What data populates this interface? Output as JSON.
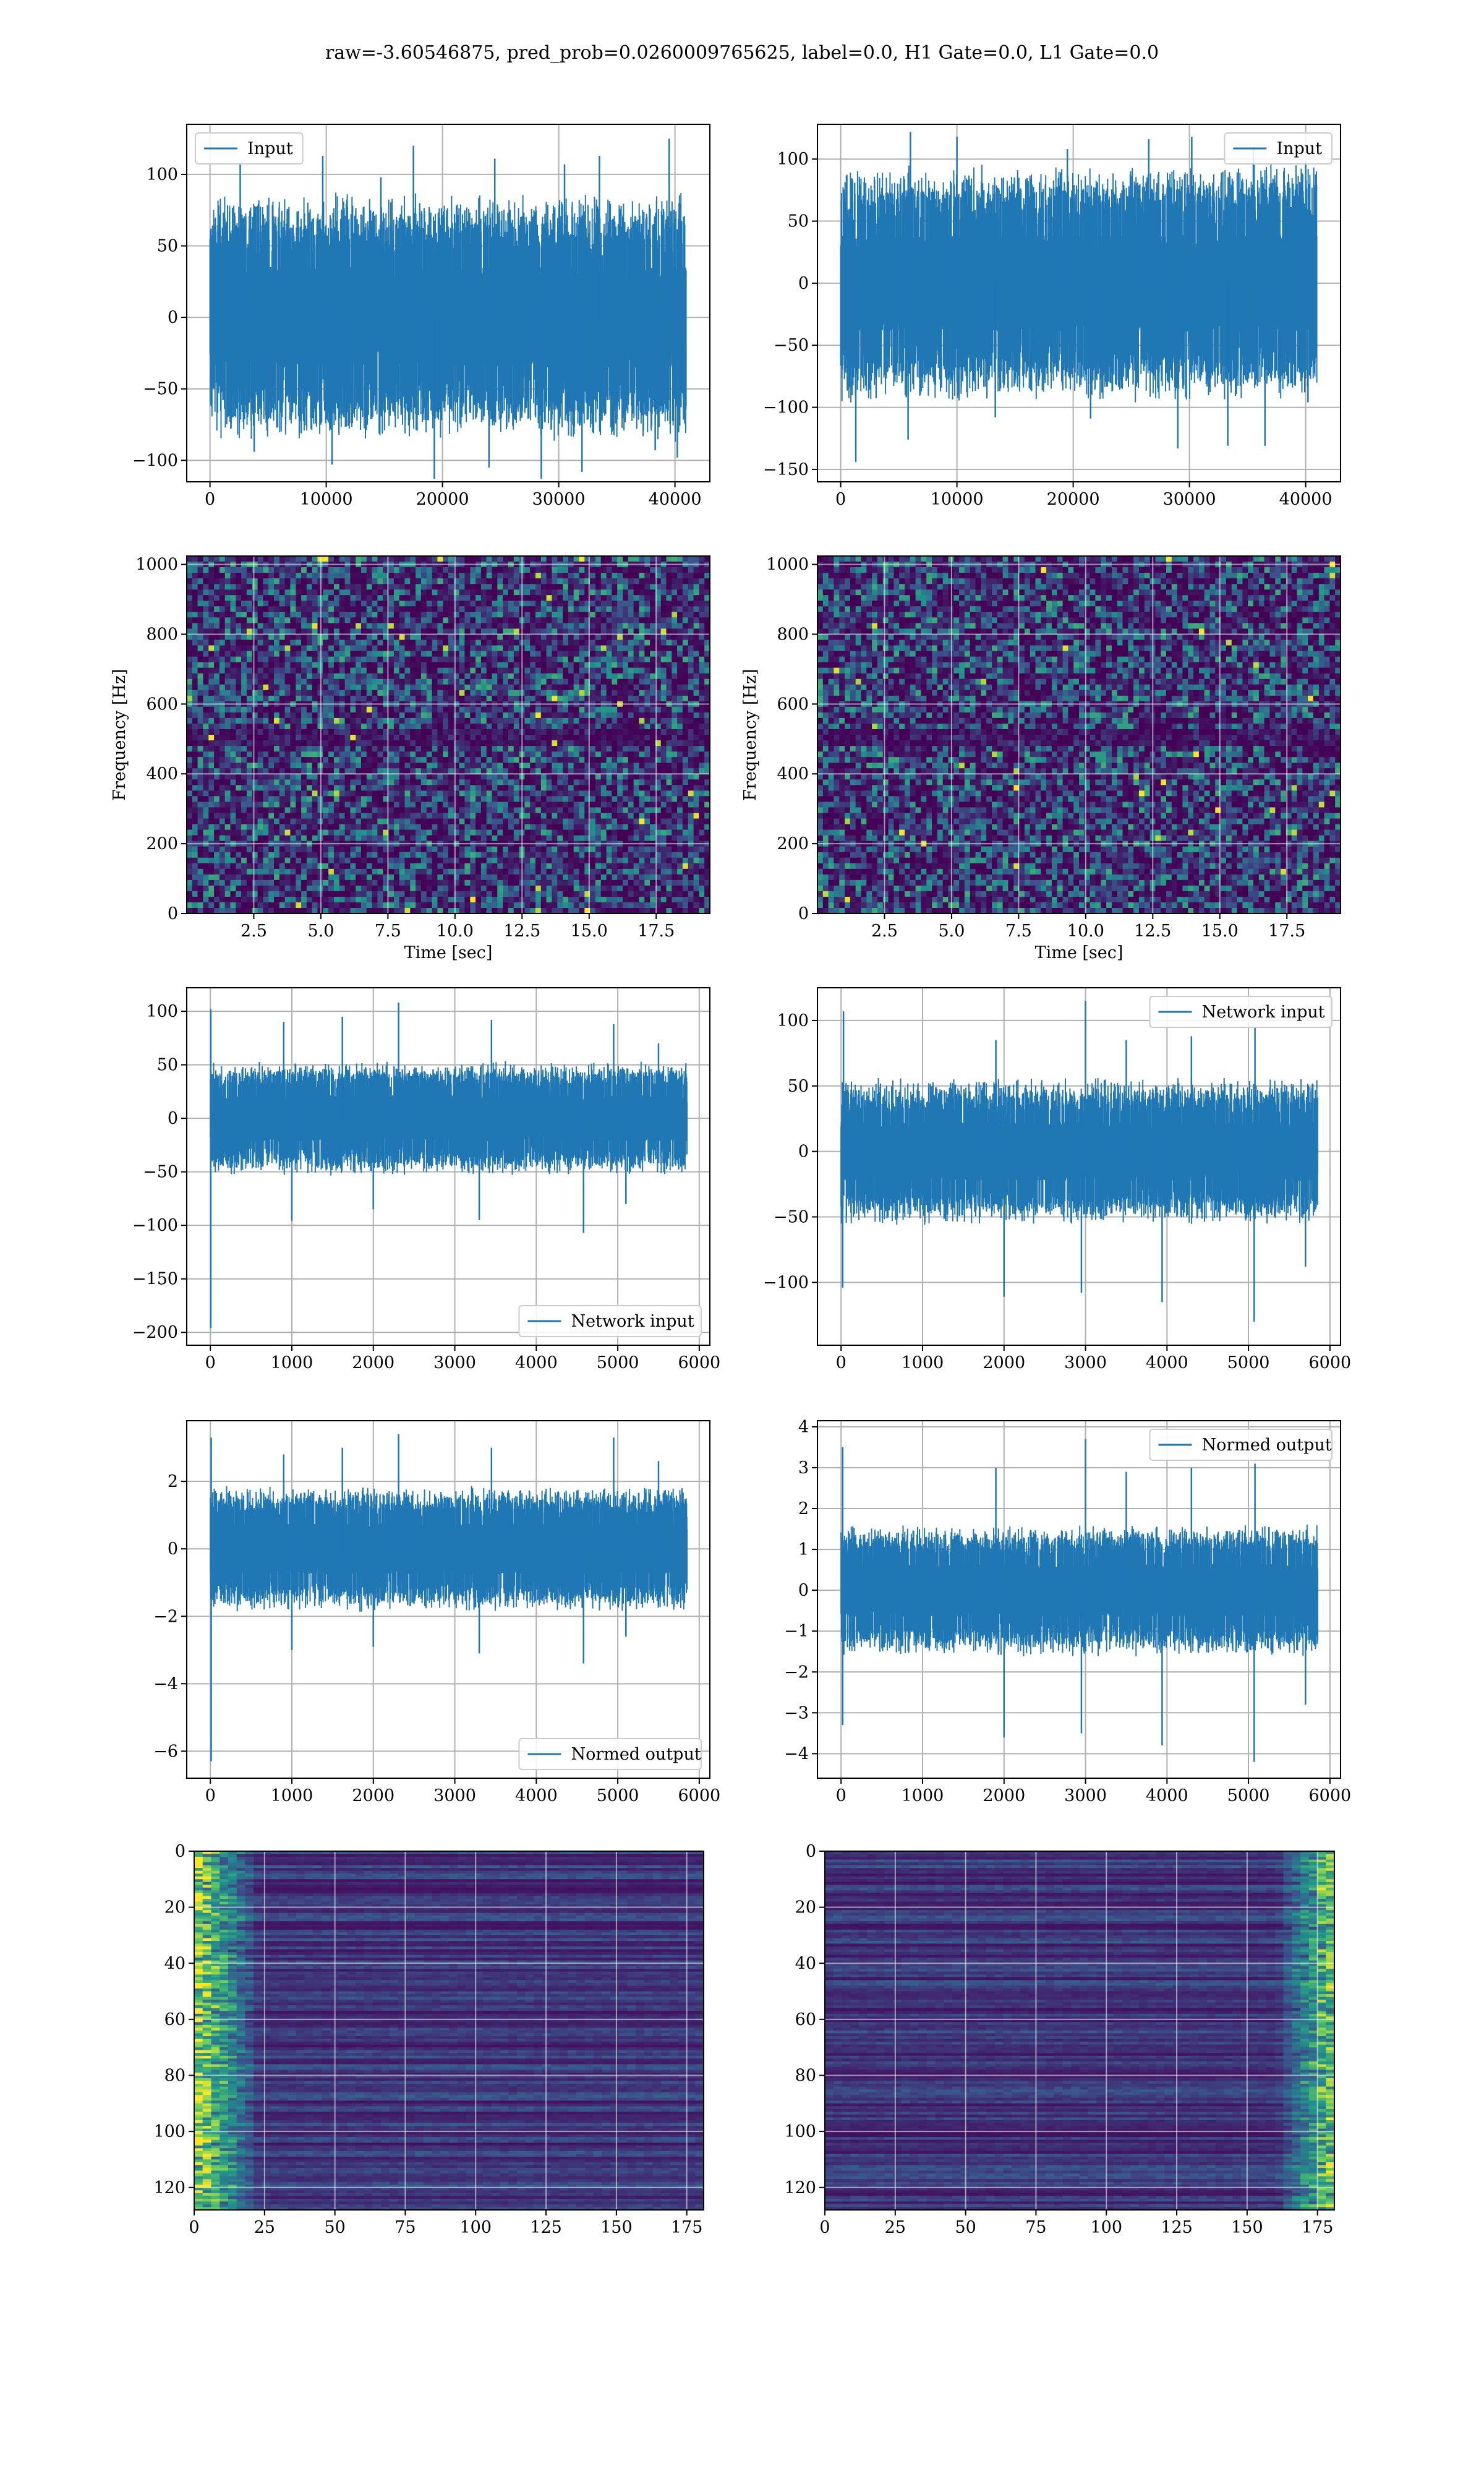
{
  "figure": {
    "title": "raw=-3.60546875, pred_prob=0.0260009765625, label=0.0, H1 Gate=0.0, L1 Gate=0.0"
  },
  "colors": {
    "line": "#1f77b4",
    "viridis": [
      "#440154",
      "#3b528b",
      "#21918c",
      "#5ec962",
      "#fde725"
    ]
  },
  "chart_data": [
    {
      "id": "r1c1",
      "type": "line",
      "panel": "row1-left",
      "title": "",
      "xlabel": "",
      "ylabel": "",
      "xlim": [
        -2000,
        43000
      ],
      "ylim": [
        -115,
        135
      ],
      "xticks": [
        0,
        10000,
        20000,
        30000,
        40000
      ],
      "yticks": [
        -100,
        -50,
        0,
        50,
        100
      ],
      "grid": true,
      "legend": "upper left",
      "series": [
        {
          "name": "Input",
          "x_range": [
            0,
            40960
          ],
          "core_amplitude": 65,
          "spikes": [
            [
              2600,
              108
            ],
            [
              9700,
              113
            ],
            [
              14700,
              98
            ],
            [
              17500,
              120
            ],
            [
              24500,
              111
            ],
            [
              30500,
              107
            ],
            [
              33500,
              113
            ],
            [
              39500,
              125
            ],
            [
              3800,
              -94
            ],
            [
              10500,
              -103
            ],
            [
              19300,
              -113
            ],
            [
              24000,
              -105
            ],
            [
              28500,
              -113
            ],
            [
              32000,
              -108
            ],
            [
              38300,
              -93
            ],
            [
              40200,
              -98
            ]
          ]
        }
      ]
    },
    {
      "id": "r1c2",
      "type": "line",
      "panel": "row1-right",
      "title": "",
      "xlabel": "",
      "ylabel": "",
      "xlim": [
        -2000,
        43000
      ],
      "ylim": [
        -160,
        128
      ],
      "xticks": [
        0,
        10000,
        20000,
        30000,
        40000
      ],
      "yticks": [
        -150,
        -100,
        -50,
        0,
        50,
        100
      ],
      "grid": true,
      "legend": "upper right",
      "series": [
        {
          "name": "Input",
          "x_range": [
            0,
            40960
          ],
          "core_amplitude": 72,
          "spikes": [
            [
              6000,
              122
            ],
            [
              10000,
              118
            ],
            [
              19500,
              108
            ],
            [
              26500,
              116
            ],
            [
              30200,
              118
            ],
            [
              35500,
              110
            ],
            [
              40000,
              98
            ],
            [
              1300,
              -144
            ],
            [
              5800,
              -126
            ],
            [
              13300,
              -108
            ],
            [
              21500,
              -109
            ],
            [
              29000,
              -133
            ],
            [
              33300,
              -131
            ],
            [
              36500,
              -131
            ],
            [
              40200,
              -96
            ]
          ]
        }
      ]
    },
    {
      "id": "r2c1",
      "type": "heatmap",
      "panel": "row2-left",
      "title": "",
      "xlabel": "Time [sec]",
      "ylabel": "Frequency [Hz]",
      "xlim": [
        0,
        19.5
      ],
      "ylim": [
        0,
        1024
      ],
      "xticks": [
        2.5,
        5.0,
        7.5,
        10.0,
        12.5,
        15.0,
        17.5
      ],
      "yticks": [
        0,
        200,
        400,
        600,
        800,
        1000
      ],
      "grid": true,
      "colormap": "viridis"
    },
    {
      "id": "r2c2",
      "type": "heatmap",
      "panel": "row2-right",
      "title": "",
      "xlabel": "Time [sec]",
      "ylabel": "Frequency [Hz]",
      "xlim": [
        0,
        19.5
      ],
      "ylim": [
        0,
        1024
      ],
      "xticks": [
        2.5,
        5.0,
        7.5,
        10.0,
        12.5,
        15.0,
        17.5
      ],
      "yticks": [
        0,
        200,
        400,
        600,
        800,
        1000
      ],
      "grid": true,
      "colormap": "viridis"
    },
    {
      "id": "r3c1",
      "type": "line",
      "panel": "row3-left",
      "title": "",
      "xlabel": "",
      "ylabel": "",
      "xlim": [
        -290,
        6130
      ],
      "ylim": [
        -212,
        122
      ],
      "xticks": [
        0,
        1000,
        2000,
        3000,
        4000,
        5000,
        6000
      ],
      "yticks": [
        -200,
        -150,
        -100,
        -50,
        0,
        50,
        100
      ],
      "grid": true,
      "legend": "lower right",
      "series": [
        {
          "name": "Network input",
          "x_range": [
            0,
            5850
          ],
          "core_amplitude": 40,
          "spikes": [
            [
              5,
              102
            ],
            [
              900,
              90
            ],
            [
              1620,
              95
            ],
            [
              2310,
              108
            ],
            [
              3450,
              92
            ],
            [
              4950,
              88
            ],
            [
              5500,
              70
            ],
            [
              5,
              -196
            ],
            [
              1000,
              -96
            ],
            [
              2000,
              -85
            ],
            [
              3300,
              -95
            ],
            [
              4580,
              -107
            ],
            [
              5100,
              -80
            ]
          ]
        }
      ]
    },
    {
      "id": "r3c2",
      "type": "line",
      "panel": "row3-right",
      "title": "",
      "xlabel": "",
      "ylabel": "",
      "xlim": [
        -290,
        6130
      ],
      "ylim": [
        -148,
        125
      ],
      "xticks": [
        0,
        1000,
        2000,
        3000,
        4000,
        5000,
        6000
      ],
      "yticks": [
        -100,
        -50,
        0,
        50,
        100
      ],
      "grid": true,
      "legend": "upper right",
      "series": [
        {
          "name": "Network input",
          "x_range": [
            0,
            5850
          ],
          "core_amplitude": 42,
          "spikes": [
            [
              30,
              107
            ],
            [
              1900,
              85
            ],
            [
              3000,
              115
            ],
            [
              3500,
              85
            ],
            [
              4300,
              88
            ],
            [
              5080,
              95
            ],
            [
              20,
              -104
            ],
            [
              2000,
              -111
            ],
            [
              2950,
              -108
            ],
            [
              3940,
              -115
            ],
            [
              5070,
              -130
            ],
            [
              5700,
              -88
            ]
          ]
        }
      ]
    },
    {
      "id": "r4c1",
      "type": "line",
      "panel": "row4-left",
      "title": "",
      "xlabel": "",
      "ylabel": "",
      "xlim": [
        -290,
        6130
      ],
      "ylim": [
        -6.8,
        3.8
      ],
      "xticks": [
        0,
        1000,
        2000,
        3000,
        4000,
        5000,
        6000
      ],
      "yticks": [
        -6,
        -4,
        -2,
        0,
        2
      ],
      "grid": true,
      "legend": "lower right",
      "series": [
        {
          "name": "Normed output",
          "x_range": [
            0,
            5850
          ],
          "core_amplitude": 1.4,
          "spikes": [
            [
              10,
              3.3
            ],
            [
              900,
              2.8
            ],
            [
              1620,
              3.0
            ],
            [
              2310,
              3.4
            ],
            [
              3450,
              3.0
            ],
            [
              4950,
              3.3
            ],
            [
              5500,
              2.6
            ],
            [
              10,
              -6.3
            ],
            [
              1000,
              -3.0
            ],
            [
              2000,
              -2.9
            ],
            [
              3300,
              -3.1
            ],
            [
              4580,
              -3.4
            ],
            [
              5100,
              -2.6
            ]
          ]
        }
      ]
    },
    {
      "id": "r4c2",
      "type": "line",
      "panel": "row4-right",
      "title": "",
      "xlabel": "",
      "ylabel": "",
      "xlim": [
        -290,
        6130
      ],
      "ylim": [
        -4.6,
        4.15
      ],
      "xticks": [
        0,
        1000,
        2000,
        3000,
        4000,
        5000,
        6000
      ],
      "yticks": [
        -4,
        -3,
        -2,
        -1,
        0,
        1,
        2,
        3,
        4
      ],
      "grid": true,
      "legend": "upper right",
      "series": [
        {
          "name": "Normed output",
          "x_range": [
            0,
            5850
          ],
          "core_amplitude": 1.2,
          "spikes": [
            [
              20,
              3.5
            ],
            [
              1900,
              3.0
            ],
            [
              3000,
              3.7
            ],
            [
              3500,
              2.9
            ],
            [
              4300,
              3.0
            ],
            [
              5080,
              3.1
            ],
            [
              20,
              -3.3
            ],
            [
              2000,
              -3.6
            ],
            [
              2950,
              -3.5
            ],
            [
              3940,
              -3.8
            ],
            [
              5070,
              -4.2
            ],
            [
              5700,
              -2.8
            ]
          ]
        }
      ]
    },
    {
      "id": "r5c1",
      "type": "heatmap",
      "panel": "row5-left",
      "title": "",
      "xlabel": "",
      "ylabel": "",
      "xlim": [
        0,
        181
      ],
      "ylim": [
        128,
        0
      ],
      "xticks": [
        0,
        25,
        50,
        75,
        100,
        125,
        150,
        175
      ],
      "yticks": [
        0,
        20,
        40,
        60,
        80,
        100,
        120
      ],
      "grid": true,
      "colormap": "viridis",
      "bright_side": "left"
    },
    {
      "id": "r5c2",
      "type": "heatmap",
      "panel": "row5-right",
      "title": "",
      "xlabel": "",
      "ylabel": "",
      "xlim": [
        0,
        181
      ],
      "ylim": [
        128,
        0
      ],
      "xticks": [
        0,
        25,
        50,
        75,
        100,
        125,
        150,
        175
      ],
      "yticks": [
        0,
        20,
        40,
        60,
        80,
        100,
        120
      ],
      "grid": true,
      "colormap": "viridis",
      "bright_side": "right"
    }
  ]
}
